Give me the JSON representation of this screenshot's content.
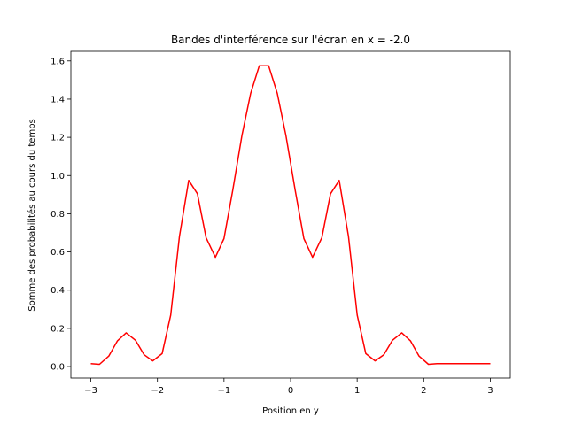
{
  "chart_data": {
    "type": "line",
    "title": "Bandes d'interférence sur l'écran en x = -2.0",
    "xlabel": "Position en y",
    "ylabel": "Somme des probabilités au cours du temps",
    "xlim": [
      -3.3,
      3.3
    ],
    "ylim": [
      -0.06,
      1.65
    ],
    "x_ticks": [
      -3,
      -2,
      -1,
      0,
      1,
      2,
      3
    ],
    "x_tick_labels": [
      "−3",
      "−2",
      "−1",
      "0",
      "1",
      "2",
      "3"
    ],
    "y_ticks": [
      0.0,
      0.2,
      0.4,
      0.6,
      0.8,
      1.0,
      1.2,
      1.4,
      1.6
    ],
    "y_tick_labels": [
      "0.0",
      "0.2",
      "0.4",
      "0.6",
      "0.8",
      "1.0",
      "1.2",
      "1.4",
      "1.6"
    ],
    "grid": false,
    "series": [
      {
        "color": "#ff0000",
        "x": [
          -3.0,
          -2.87,
          -2.73,
          -2.6,
          -2.47,
          -2.33,
          -2.2,
          -2.07,
          -1.93,
          -1.8,
          -1.67,
          -1.53,
          -1.4,
          -1.27,
          -1.13,
          -1.0,
          -0.87,
          -0.73,
          -0.6,
          -0.47,
          -0.33,
          -0.2,
          -0.07,
          0.07,
          0.2,
          0.33,
          0.47,
          0.6,
          0.73,
          0.87,
          1.0,
          1.13,
          1.27,
          1.4,
          1.53,
          1.67,
          1.8,
          1.93,
          2.07,
          2.2,
          2.33,
          2.47,
          2.6,
          2.73,
          2.87,
          3.0
        ],
        "y": [
          0.015,
          0.012,
          0.055,
          0.135,
          0.177,
          0.138,
          0.062,
          0.03,
          0.068,
          0.27,
          0.68,
          0.975,
          0.905,
          0.675,
          0.572,
          0.67,
          0.92,
          1.21,
          1.43,
          1.575,
          1.575,
          1.43,
          1.21,
          0.92,
          0.67,
          0.572,
          0.675,
          0.905,
          0.975,
          0.68,
          0.27,
          0.068,
          0.03,
          0.062,
          0.138,
          0.177,
          0.135,
          0.055,
          0.012,
          0.015,
          0.015,
          0.015,
          0.015,
          0.015,
          0.015,
          0.015
        ]
      }
    ]
  }
}
